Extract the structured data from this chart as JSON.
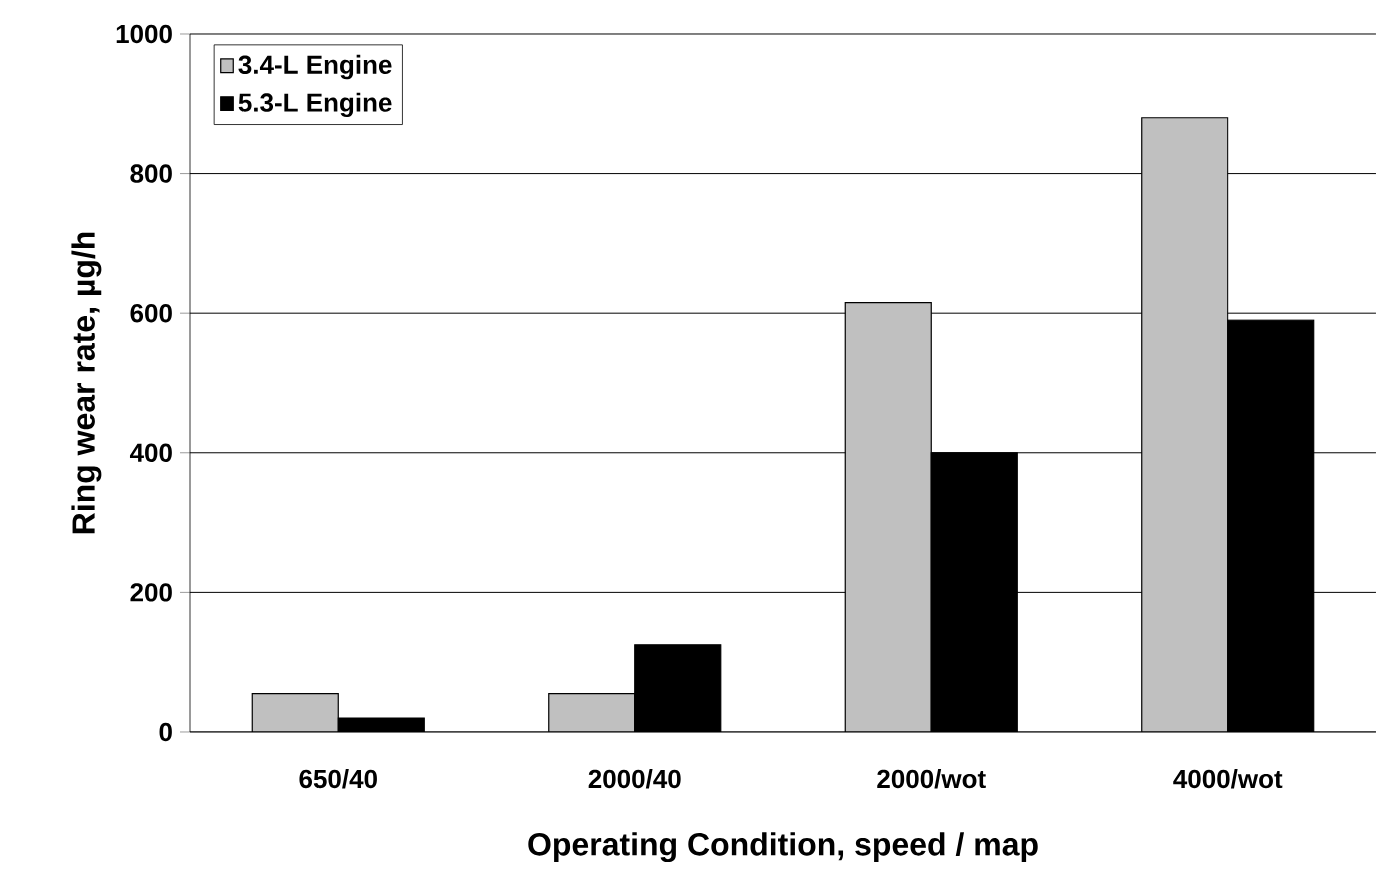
{
  "chart_data": {
    "type": "bar",
    "xlabel": "Operating Condition, speed / map",
    "ylabel": "Ring wear rate, µg/h",
    "categories": [
      "650/40",
      "2000/40",
      "2000/wot",
      "4000/wot"
    ],
    "series": [
      {
        "name": "3.4-L Engine",
        "color": "#c0c0c0",
        "values": [
          55,
          55,
          615,
          880
        ]
      },
      {
        "name": "5.3-L Engine",
        "color": "#000000",
        "values": [
          20,
          125,
          400,
          590
        ]
      }
    ],
    "ylim": [
      0,
      1000
    ],
    "yticks": [
      0,
      200,
      400,
      600,
      800,
      1000
    ],
    "grid": "y",
    "legend": "top left"
  }
}
